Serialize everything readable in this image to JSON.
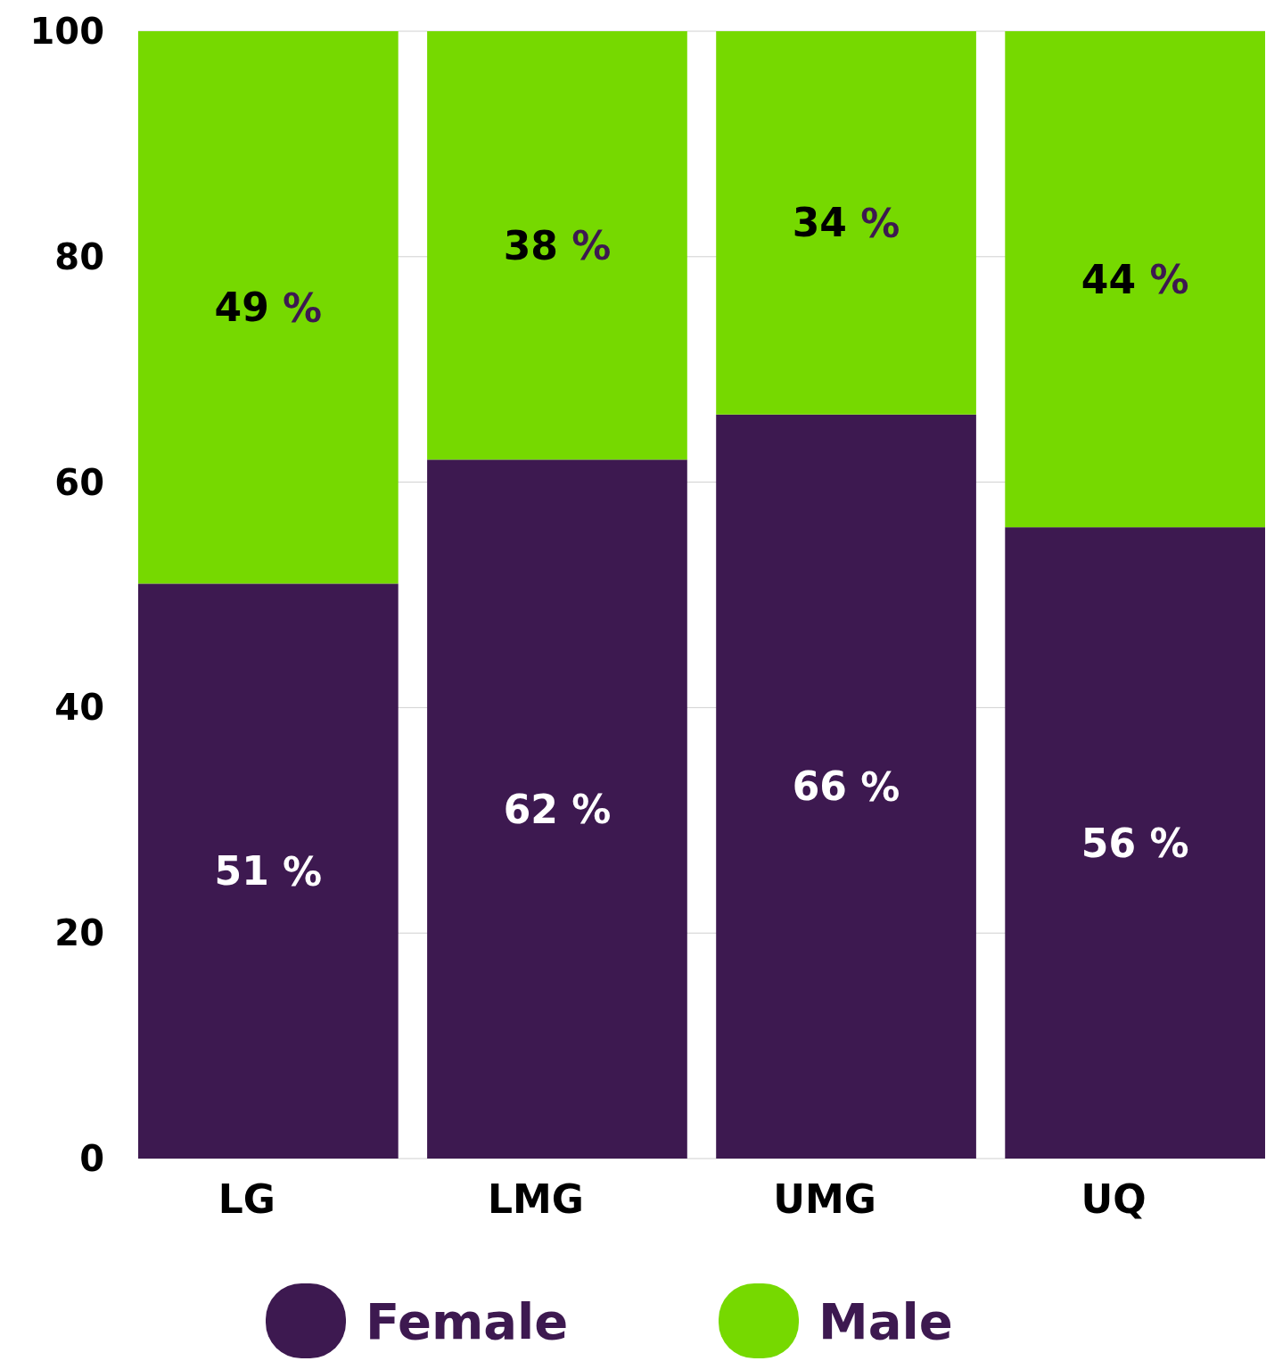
{
  "chart_data": {
    "type": "bar",
    "stacked": true,
    "categories": [
      "LG",
      "LMG",
      "UMG",
      "UQ"
    ],
    "series": [
      {
        "name": "Female",
        "color": "#3d1950",
        "values": [
          51,
          62,
          66,
          56
        ],
        "value_labels": [
          "51 %",
          "62 %",
          "66 %",
          "56 %"
        ]
      },
      {
        "name": "Male",
        "color": "#76d900",
        "values": [
          49,
          38,
          34,
          44
        ],
        "value_labels": [
          "49 %",
          "38 %",
          "34 %",
          "44 %"
        ]
      }
    ],
    "ylim": [
      0,
      100
    ],
    "yticks": [
      0,
      20,
      40,
      60,
      80,
      100
    ],
    "grid": "y",
    "legend": "bottom"
  }
}
